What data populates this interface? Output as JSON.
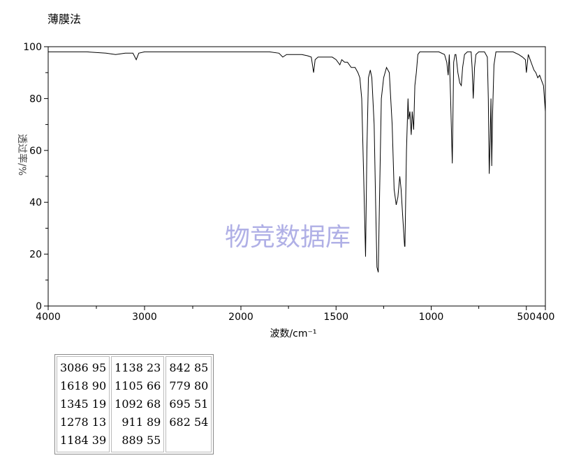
{
  "method_label": "薄膜法",
  "watermark": "物竞数据库",
  "colors": {
    "trace": "#000000",
    "watermark": "#b0b0e6",
    "frame": "#000000"
  },
  "chart_data": {
    "type": "line",
    "title": "",
    "xlabel": "波数/cm⁻¹",
    "ylabel": "透过率/%",
    "xlim": [
      4000,
      400
    ],
    "ylim": [
      0,
      100
    ],
    "x_ticks": [
      4000,
      3000,
      2000,
      1500,
      1000,
      500,
      400
    ],
    "x_tick_labels": [
      "4000",
      "3000",
      "2000",
      "1500",
      "1000",
      "500",
      "400"
    ],
    "y_ticks": [
      0,
      20,
      40,
      60,
      80,
      100
    ],
    "grid": false,
    "legend": "none",
    "series": [
      {
        "x": [
          4000,
          3800,
          3600,
          3400,
          3300,
          3200,
          3120,
          3086,
          3060,
          3000,
          2800,
          2600,
          2400,
          2200,
          2000,
          1850,
          1800,
          1780,
          1760,
          1720,
          1680,
          1650,
          1630,
          1618,
          1610,
          1595,
          1560,
          1520,
          1500,
          1480,
          1470,
          1455,
          1440,
          1420,
          1400,
          1385,
          1375,
          1365,
          1355,
          1345,
          1338,
          1330,
          1320,
          1312,
          1300,
          1292,
          1285,
          1278,
          1272,
          1262,
          1250,
          1235,
          1220,
          1205,
          1195,
          1184,
          1175,
          1165,
          1158,
          1150,
          1140,
          1138,
          1130,
          1122,
          1118,
          1112,
          1105,
          1100,
          1092,
          1086,
          1078,
          1070,
          1060,
          1040,
          1000,
          960,
          930,
          918,
          911,
          905,
          898,
          889,
          882,
          875,
          870,
          860,
          850,
          842,
          835,
          825,
          810,
          790,
          785,
          779,
          772,
          765,
          750,
          735,
          720,
          705,
          700,
          695,
          690,
          686,
          682,
          677,
          670,
          660,
          640,
          620,
          600,
          570,
          540,
          520,
          505,
          500,
          490,
          480,
          470,
          460,
          450,
          440,
          430,
          420,
          410,
          400
        ],
        "y": [
          98,
          98,
          98,
          97.5,
          97,
          97.5,
          97.5,
          95,
          97.5,
          98,
          98,
          98,
          98,
          98,
          98,
          98,
          97.5,
          96,
          97,
          97,
          97,
          96.5,
          96,
          90,
          95,
          96,
          96,
          96,
          95,
          93,
          95,
          94,
          94,
          92,
          92,
          90,
          88,
          80,
          50,
          19,
          60,
          88,
          91,
          88,
          70,
          40,
          15,
          13,
          40,
          80,
          88,
          92,
          90,
          70,
          45,
          39,
          42,
          50,
          45,
          35,
          23,
          23,
          60,
          80,
          72,
          75,
          66,
          75,
          68,
          85,
          90,
          97,
          98,
          98,
          98,
          98,
          97,
          94,
          89,
          97,
          80,
          55,
          94,
          97,
          97,
          90,
          86,
          85,
          92,
          97,
          98,
          98,
          92,
          80,
          92,
          97,
          98,
          98,
          98,
          96,
          80,
          51,
          65,
          80,
          54,
          75,
          93,
          98,
          98,
          98,
          98,
          98,
          97,
          96,
          95,
          90,
          97,
          95,
          93,
          91,
          90,
          88,
          89,
          87,
          85,
          75
        ]
      }
    ]
  },
  "peaks": [
    [
      "3086 95",
      "1618 90",
      "1345 19",
      "1278 13",
      "1184 39"
    ],
    [
      "1138 23",
      "1105 66",
      "1092 68",
      "  911 89",
      "  889 55"
    ],
    [
      "842 85",
      "779 80",
      "695 51",
      "682 54",
      ""
    ]
  ]
}
